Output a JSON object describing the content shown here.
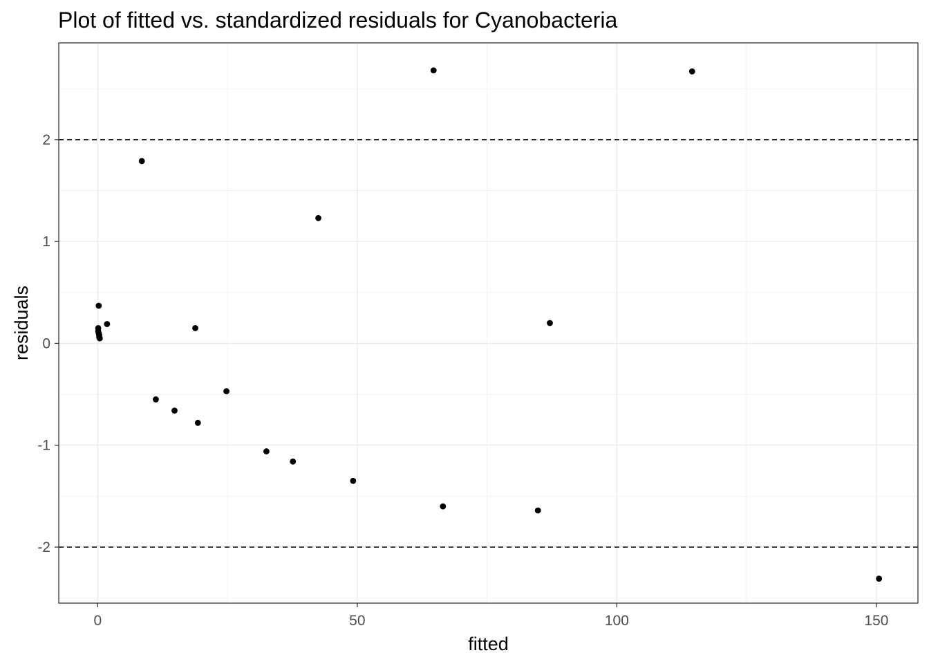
{
  "chart_data": {
    "type": "scatter",
    "title": "Plot of fitted vs. standardized residuals for Cyanobacteria",
    "xlabel": "fitted",
    "ylabel": "residuals",
    "xlim": [
      -7.5,
      158
    ],
    "ylim": [
      -2.55,
      2.95
    ],
    "x_ticks": [
      0,
      50,
      100,
      150
    ],
    "x_tick_labels": [
      "0",
      "50",
      "100",
      "150"
    ],
    "y_ticks": [
      -2,
      -1,
      0,
      1,
      2
    ],
    "y_tick_labels": [
      "-2",
      "-1",
      "0",
      "1",
      "2"
    ],
    "grid": true,
    "legend": "none",
    "reference_lines": [
      {
        "y": 2,
        "style": "dashed"
      },
      {
        "y": -2,
        "style": "dashed"
      }
    ],
    "point_color": "#000000",
    "points": [
      {
        "x": 0.1,
        "y": 0.15
      },
      {
        "x": 0.1,
        "y": 0.12
      },
      {
        "x": 0.2,
        "y": 0.1
      },
      {
        "x": 0.3,
        "y": 0.08
      },
      {
        "x": 0.3,
        "y": 0.06
      },
      {
        "x": 0.4,
        "y": 0.05
      },
      {
        "x": 0.2,
        "y": 0.37
      },
      {
        "x": 1.8,
        "y": 0.19
      },
      {
        "x": 8.5,
        "y": 1.79
      },
      {
        "x": 11.2,
        "y": -0.55
      },
      {
        "x": 14.8,
        "y": -0.66
      },
      {
        "x": 18.8,
        "y": 0.15
      },
      {
        "x": 19.3,
        "y": -0.78
      },
      {
        "x": 24.8,
        "y": -0.47
      },
      {
        "x": 32.5,
        "y": -1.06
      },
      {
        "x": 37.6,
        "y": -1.16
      },
      {
        "x": 42.5,
        "y": 1.23
      },
      {
        "x": 49.2,
        "y": -1.35
      },
      {
        "x": 64.7,
        "y": 2.68
      },
      {
        "x": 66.5,
        "y": -1.6
      },
      {
        "x": 84.8,
        "y": -1.64
      },
      {
        "x": 87.1,
        "y": 0.2
      },
      {
        "x": 114.5,
        "y": 2.67
      },
      {
        "x": 150.5,
        "y": -2.31
      }
    ]
  }
}
